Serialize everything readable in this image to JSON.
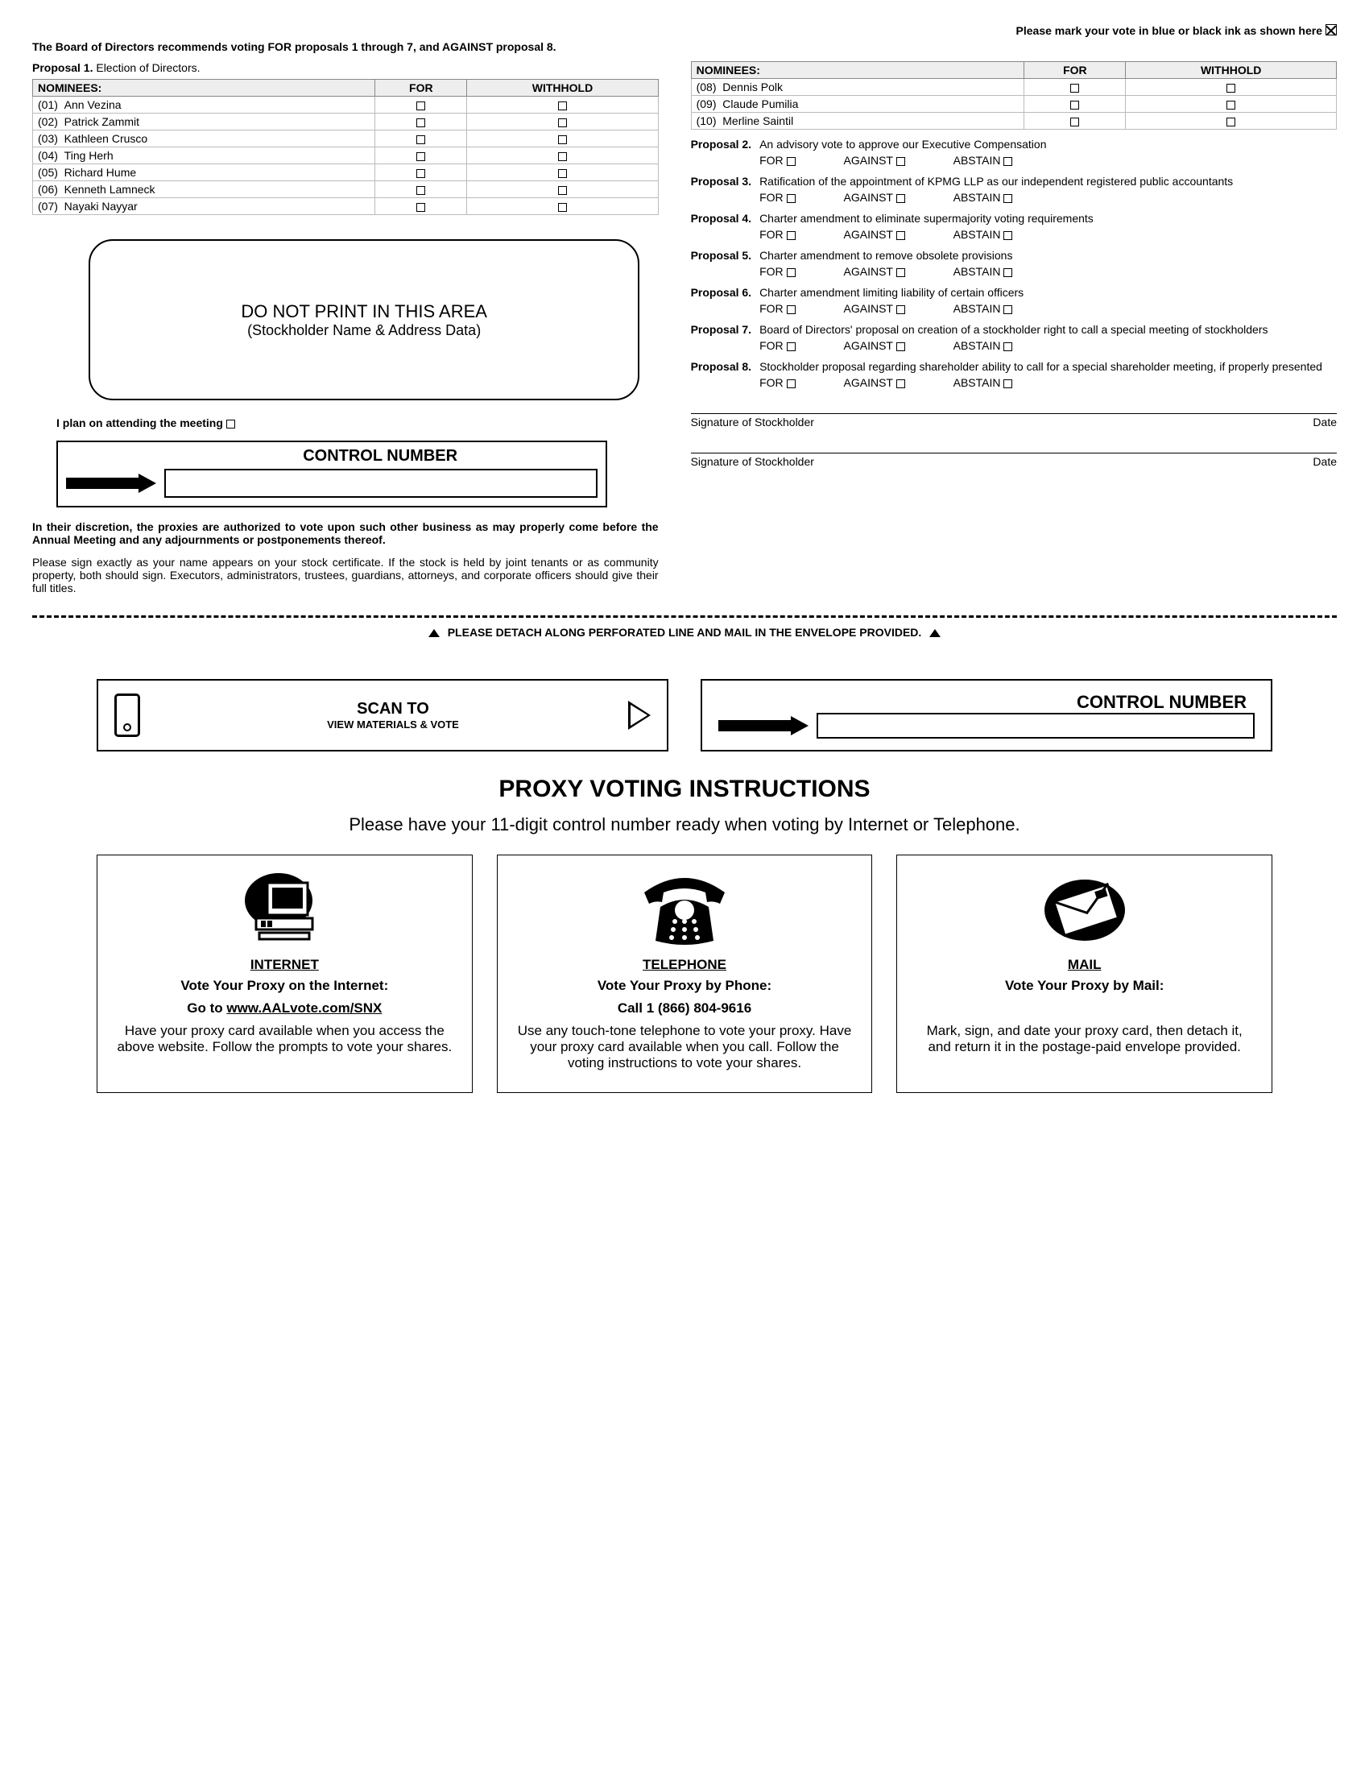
{
  "header": {
    "mark_instruction": "Please mark your vote in blue or black ink as shown here",
    "recommendation": "The Board of Directors recommends voting FOR proposals 1 through 7, and AGAINST proposal 8.",
    "proposal1_label": "Proposal 1.",
    "proposal1_text": "Election of Directors."
  },
  "nominees_table": {
    "headers": {
      "name": "NOMINEES:",
      "for": "FOR",
      "withhold": "WITHHOLD"
    },
    "left": [
      {
        "num": "(01)",
        "name": "Ann Vezina"
      },
      {
        "num": "(02)",
        "name": "Patrick Zammit"
      },
      {
        "num": "(03)",
        "name": "Kathleen Crusco"
      },
      {
        "num": "(04)",
        "name": "Ting Herh"
      },
      {
        "num": "(05)",
        "name": "Richard Hume"
      },
      {
        "num": "(06)",
        "name": "Kenneth Lamneck"
      },
      {
        "num": "(07)",
        "name": "Nayaki Nayyar"
      }
    ],
    "right": [
      {
        "num": "(08)",
        "name": "Dennis Polk"
      },
      {
        "num": "(09)",
        "name": "Claude Pumilia"
      },
      {
        "num": "(10)",
        "name": "Merline Saintil"
      }
    ]
  },
  "no_print": {
    "line1": "DO NOT PRINT IN THIS AREA",
    "line2": "(Stockholder Name & Address Data)"
  },
  "attend_text": "I plan on attending the meeting",
  "control_label": "CONTROL NUMBER",
  "discretion": "In their discretion, the proxies are authorized to vote upon such other business as may properly come before the Annual Meeting and any adjournments or postponements thereof.",
  "sign_instructions": "Please sign exactly as your name appears on your stock certificate. If the stock is held by joint tenants or as community property, both should sign. Executors, administrators, trustees, guardians, attorneys, and corporate officers should give their full titles.",
  "vote_labels": {
    "for": "FOR",
    "against": "AGAINST",
    "abstain": "ABSTAIN"
  },
  "proposals": [
    {
      "label": "Proposal 2.",
      "text": "An advisory vote to approve our Executive Compensation"
    },
    {
      "label": "Proposal 3.",
      "text": "Ratification of the appointment of KPMG LLP as our independent registered public accountants"
    },
    {
      "label": "Proposal 4.",
      "text": "Charter amendment to eliminate supermajority voting requirements"
    },
    {
      "label": "Proposal 5.",
      "text": "Charter amendment to remove obsolete provisions"
    },
    {
      "label": "Proposal 6.",
      "text": "Charter amendment limiting liability of certain officers"
    },
    {
      "label": "Proposal 7.",
      "text": "Board of Directors' proposal on creation of a stockholder right to call a special meeting of stockholders"
    },
    {
      "label": "Proposal 8.",
      "text": "Stockholder proposal regarding shareholder ability to call for a special shareholder meeting, if properly presented"
    }
  ],
  "signature": {
    "label": "Signature of Stockholder",
    "date": "Date"
  },
  "detach": "PLEASE DETACH ALONG PERFORATED LINE AND MAIL IN THE ENVELOPE PROVIDED.",
  "scan": {
    "line1": "SCAN TO",
    "line2": "VIEW MATERIALS & VOTE"
  },
  "instructions": {
    "title": "PROXY VOTING INSTRUCTIONS",
    "subtitle": "Please have your 11-digit control number ready when voting by Internet or Telephone."
  },
  "methods": {
    "internet": {
      "title": "INTERNET",
      "lead1": "Vote Your Proxy on the Internet:",
      "lead2a": "Go to ",
      "lead2b": "www.AALvote.com/SNX",
      "body": "Have your proxy card available when you access the above website. Follow the prompts to vote your shares."
    },
    "telephone": {
      "title": "TELEPHONE",
      "lead1": "Vote Your Proxy by Phone:",
      "lead2": "Call 1 (866) 804-9616",
      "body": "Use any touch-tone telephone to vote your proxy. Have your proxy card available when you call. Follow the voting instructions to vote your shares."
    },
    "mail": {
      "title": "MAIL",
      "lead1": "Vote Your Proxy by Mail:",
      "body": "Mark, sign, and date your proxy card, then detach it, and return it in the postage-paid envelope provided."
    }
  }
}
